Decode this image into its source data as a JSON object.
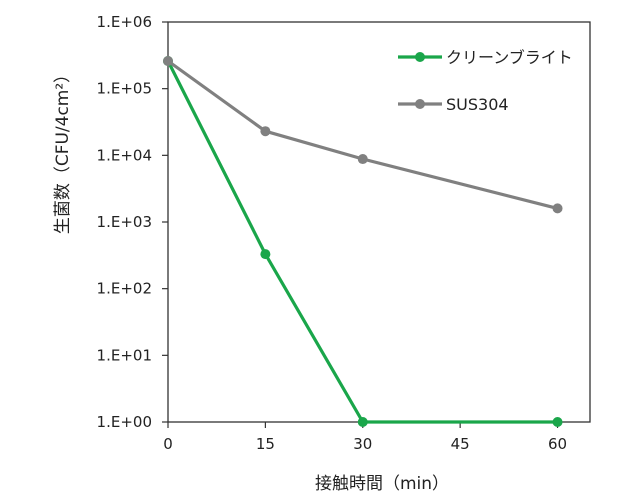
{
  "chart_data": {
    "type": "line",
    "title": "",
    "xlabel": "接触時間（min）",
    "ylabel": "生菌数（CFU/4cm²）",
    "yscale": "log",
    "xlim": [
      0,
      65
    ],
    "ylim": [
      1,
      1000000
    ],
    "x_ticks": [
      0,
      15,
      30,
      45,
      60
    ],
    "x_tick_labels": [
      "0",
      "15",
      "30",
      "45",
      "60"
    ],
    "y_ticks": [
      1,
      10,
      100,
      1000,
      10000,
      100000,
      1000000
    ],
    "y_tick_labels": [
      "1.E+00",
      "1.E+01",
      "1.E+02",
      "1.E+03",
      "1.E+04",
      "1.E+05",
      "1.E+06"
    ],
    "grid": false,
    "legend_position": "top-right",
    "series": [
      {
        "name": "クリーンブライト",
        "color": "#1aa64a",
        "x": [
          0,
          15,
          30,
          60
        ],
        "y": [
          260000,
          330,
          1,
          1
        ]
      },
      {
        "name": "SUS304",
        "color": "#808080",
        "x": [
          0,
          15,
          30,
          60
        ],
        "y": [
          260000,
          23000,
          8800,
          1600
        ]
      }
    ]
  }
}
